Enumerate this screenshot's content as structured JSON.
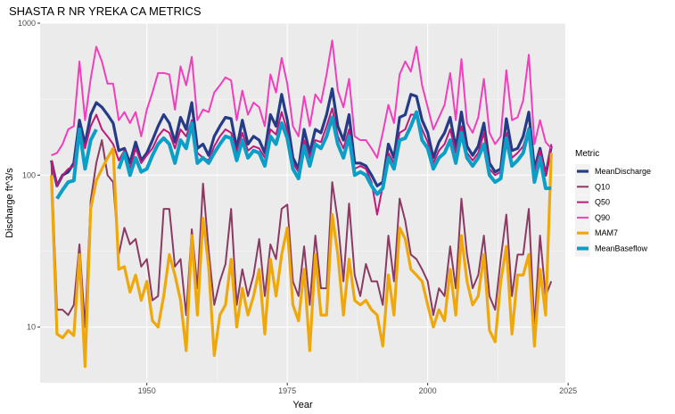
{
  "chart_data": {
    "type": "line",
    "title": "SHASTA R NR YREKA CA  METRICS",
    "xlabel": "Year",
    "ylabel": "Discharge ft^3/s",
    "xlim": [
      1931,
      2024.5
    ],
    "ylim": [
      4.3,
      1000
    ],
    "yscale": "log10",
    "x_ticks": [
      1950,
      1975,
      2000,
      2025
    ],
    "x_tick_labels": [
      "1950",
      "1975",
      "2000",
      "2025"
    ],
    "y_ticks": [
      10,
      100,
      1000
    ],
    "y_tick_labels": [
      "10",
      "100",
      "1000"
    ],
    "grid": true,
    "legend": {
      "title": "Metric",
      "position": "right"
    },
    "x": [
      1933,
      1934,
      1935,
      1936,
      1937,
      1938,
      1939,
      1940,
      1941,
      1942,
      1943,
      1944,
      1945,
      1946,
      1947,
      1948,
      1949,
      1950,
      1951,
      1952,
      1953,
      1954,
      1955,
      1956,
      1957,
      1958,
      1959,
      1960,
      1961,
      1962,
      1963,
      1964,
      1965,
      1966,
      1967,
      1968,
      1969,
      1970,
      1971,
      1972,
      1973,
      1974,
      1975,
      1976,
      1977,
      1978,
      1979,
      1980,
      1981,
      1982,
      1983,
      1984,
      1985,
      1986,
      1987,
      1988,
      1989,
      1990,
      1991,
      1992,
      1993,
      1994,
      1995,
      1996,
      1997,
      1998,
      1999,
      2000,
      2001,
      2002,
      2003,
      2004,
      2005,
      2006,
      2007,
      2008,
      2009,
      2010,
      2011,
      2012,
      2013,
      2014,
      2015,
      2016,
      2017,
      2018,
      2019,
      2020,
      2021,
      2022
    ],
    "series": [
      {
        "name": "MeanDischarge",
        "color": "#253b87",
        "width": 3.2,
        "values": [
          125,
          85,
          100,
          105,
          120,
          230,
          160,
          250,
          300,
          280,
          250,
          220,
          145,
          150,
          120,
          165,
          125,
          140,
          170,
          210,
          250,
          220,
          165,
          240,
          200,
          300,
          150,
          160,
          135,
          180,
          210,
          240,
          235,
          150,
          230,
          160,
          180,
          170,
          140,
          250,
          210,
          340,
          230,
          130,
          110,
          200,
          140,
          200,
          190,
          250,
          370,
          210,
          170,
          250,
          120,
          120,
          115,
          100,
          85,
          90,
          160,
          130,
          240,
          250,
          340,
          330,
          230,
          190,
          130,
          165,
          190,
          240,
          150,
          260,
          155,
          135,
          155,
          220,
          120,
          105,
          110,
          235,
          145,
          150,
          180,
          260,
          110,
          150,
          100,
          155
        ]
      },
      {
        "name": "Q10",
        "color": "#8b3a62",
        "width": 2,
        "values": [
          125,
          13,
          13,
          12,
          14,
          35,
          10,
          68,
          120,
          170,
          100,
          90,
          30,
          45,
          35,
          38,
          25,
          28,
          15,
          16,
          60,
          60,
          25,
          28,
          12,
          44,
          18,
          88,
          32,
          14,
          20,
          26,
          60,
          14,
          24,
          16,
          22,
          38,
          16,
          35,
          28,
          60,
          64,
          20,
          16,
          34,
          14,
          40,
          18,
          18,
          90,
          50,
          20,
          65,
          22,
          16,
          26,
          20,
          20,
          14,
          40,
          20,
          70,
          50,
          30,
          28,
          24,
          20,
          12,
          18,
          16,
          34,
          18,
          70,
          30,
          18,
          22,
          40,
          16,
          13,
          28,
          55,
          16,
          30,
          30,
          60,
          10,
          40,
          16,
          20
        ]
      },
      {
        "name": "Q50",
        "color": "#c2187c",
        "width": 2,
        "values": [
          125,
          85,
          100,
          110,
          115,
          200,
          150,
          210,
          250,
          200,
          180,
          160,
          125,
          145,
          110,
          150,
          120,
          135,
          150,
          180,
          200,
          190,
          150,
          200,
          180,
          230,
          140,
          130,
          125,
          155,
          180,
          200,
          190,
          140,
          190,
          145,
          155,
          150,
          130,
          200,
          185,
          260,
          195,
          120,
          105,
          170,
          130,
          170,
          165,
          210,
          275,
          180,
          150,
          200,
          110,
          115,
          110,
          90,
          55,
          85,
          140,
          120,
          190,
          200,
          250,
          250,
          200,
          165,
          120,
          145,
          160,
          200,
          140,
          210,
          140,
          125,
          140,
          190,
          110,
          100,
          105,
          190,
          130,
          140,
          155,
          205,
          105,
          145,
          100,
          160
        ]
      },
      {
        "name": "Q90",
        "color": "#f23ebd",
        "width": 2,
        "values": [
          135,
          140,
          160,
          200,
          210,
          560,
          230,
          430,
          700,
          560,
          400,
          400,
          230,
          260,
          220,
          260,
          180,
          270,
          350,
          470,
          470,
          460,
          270,
          520,
          390,
          600,
          230,
          270,
          260,
          350,
          390,
          440,
          420,
          230,
          360,
          250,
          300,
          280,
          210,
          460,
          350,
          590,
          400,
          210,
          180,
          330,
          210,
          340,
          300,
          460,
          770,
          360,
          280,
          430,
          180,
          170,
          170,
          150,
          130,
          190,
          290,
          220,
          460,
          560,
          480,
          700,
          390,
          280,
          200,
          240,
          290,
          470,
          230,
          580,
          220,
          190,
          240,
          430,
          190,
          160,
          180,
          490,
          230,
          240,
          310,
          620,
          160,
          230,
          165,
          150
        ]
      },
      {
        "name": "MAM7",
        "color": "#efa80c",
        "width": 3.2,
        "values": [
          100,
          9,
          8.5,
          9.5,
          8.8,
          30,
          5.5,
          60,
          92,
          110,
          130,
          150,
          24,
          25,
          17,
          22,
          15,
          20,
          11,
          10,
          16,
          30,
          22,
          15,
          7,
          40,
          12,
          52,
          25,
          6.5,
          12,
          14,
          28,
          10,
          18,
          12,
          16,
          24,
          9,
          28,
          16,
          30,
          45,
          14,
          11,
          24,
          7,
          30,
          12,
          12,
          55,
          30,
          12,
          28,
          15,
          14,
          15,
          13,
          12,
          7.5,
          22,
          12,
          45,
          38,
          24,
          22,
          20,
          14,
          10,
          13,
          11,
          24,
          12,
          40,
          20,
          14,
          16,
          30,
          9.5,
          8,
          20,
          34,
          9,
          22,
          22,
          30,
          7.5,
          24,
          12,
          140
        ]
      },
      {
        "name": "MeanBaseflow",
        "color": "#0b9ec7",
        "width": 4,
        "values": [
          null,
          70,
          80,
          90,
          92,
          200,
          110,
          170,
          200,
          null,
          null,
          null,
          110,
          140,
          100,
          130,
          105,
          110,
          135,
          160,
          175,
          160,
          120,
          170,
          150,
          220,
          120,
          130,
          120,
          140,
          160,
          180,
          175,
          125,
          170,
          130,
          145,
          140,
          115,
          180,
          160,
          220,
          175,
          110,
          95,
          155,
          115,
          160,
          150,
          180,
          240,
          160,
          130,
          180,
          100,
          105,
          100,
          85,
          75,
          82,
          130,
          110,
          170,
          175,
          210,
          260,
          170,
          150,
          110,
          130,
          140,
          170,
          120,
          190,
          130,
          115,
          130,
          160,
          100,
          90,
          95,
          175,
          115,
          125,
          140,
          200,
          90,
          130,
          82,
          82
        ]
      }
    ]
  }
}
